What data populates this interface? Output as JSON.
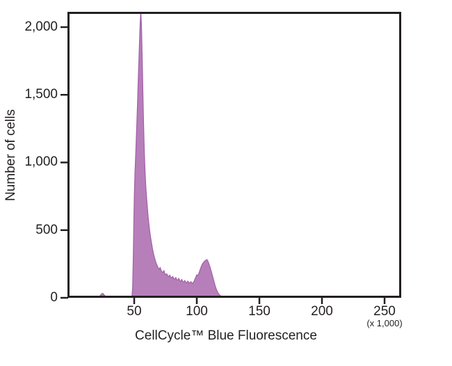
{
  "figure": {
    "background_color": "#ffffff",
    "axis_color": "#231f20",
    "text_color": "#231f20"
  },
  "chart_data": {
    "type": "area",
    "title": "",
    "xlabel": "CellCycle™ Blue Fluorescence",
    "x_multiplier_label": "(x 1,000)",
    "ylabel": "Number of cells",
    "xlim": [
      -3.33,
      263.33
    ],
    "ylim": [
      0,
      2113
    ],
    "x_ticks": [
      50,
      100,
      150,
      200,
      250
    ],
    "x_tick_labels": [
      "50",
      "100",
      "150",
      "200",
      "250"
    ],
    "y_ticks": [
      0,
      500,
      1000,
      1500,
      2000
    ],
    "y_tick_labels": [
      "0",
      "500",
      "1,000",
      "1,500",
      "2,000"
    ],
    "grid": false,
    "legend": null,
    "series": [
      {
        "name": "Number of cells",
        "fill": "#b77fba",
        "stroke": "#a263a8",
        "points": [
          [
            0,
            0
          ],
          [
            19,
            0
          ],
          [
            21,
            3
          ],
          [
            22.5,
            12
          ],
          [
            24,
            30
          ],
          [
            25,
            33
          ],
          [
            26,
            20
          ],
          [
            27.5,
            8
          ],
          [
            29,
            1
          ],
          [
            31,
            0
          ],
          [
            45,
            0
          ],
          [
            47.5,
            0
          ],
          [
            48.3,
            15
          ],
          [
            48.8,
            80
          ],
          [
            49.3,
            300
          ],
          [
            49.7,
            560
          ],
          [
            50.1,
            760
          ],
          [
            50.6,
            920
          ],
          [
            51.2,
            1060
          ],
          [
            51.9,
            1230
          ],
          [
            52.6,
            1420
          ],
          [
            53.3,
            1620
          ],
          [
            54,
            1820
          ],
          [
            54.6,
            1990
          ],
          [
            55,
            2070
          ],
          [
            55.3,
            2110
          ],
          [
            55.7,
            2030
          ],
          [
            56.1,
            1880
          ],
          [
            56.6,
            1660
          ],
          [
            57.1,
            1430
          ],
          [
            57.6,
            1230
          ],
          [
            58.1,
            1060
          ],
          [
            58.7,
            920
          ],
          [
            59.4,
            800
          ],
          [
            60.2,
            700
          ],
          [
            61,
            610
          ],
          [
            61.9,
            530
          ],
          [
            62.8,
            465
          ],
          [
            63.7,
            410
          ],
          [
            64.6,
            362
          ],
          [
            65.5,
            322
          ],
          [
            66.4,
            290
          ],
          [
            67.3,
            262
          ],
          [
            68.2,
            240
          ],
          [
            69.1,
            222
          ],
          [
            70,
            210
          ],
          [
            70.7,
            224
          ],
          [
            71.4,
            205
          ],
          [
            72.2,
            192
          ],
          [
            73,
            186
          ],
          [
            73.7,
            202
          ],
          [
            74.4,
            180
          ],
          [
            75.2,
            170
          ],
          [
            76,
            178
          ],
          [
            76.8,
            162
          ],
          [
            77.6,
            156
          ],
          [
            78.4,
            168
          ],
          [
            79.2,
            152
          ],
          [
            80,
            146
          ],
          [
            80.8,
            158
          ],
          [
            81.6,
            142
          ],
          [
            82.4,
            138
          ],
          [
            83.2,
            150
          ],
          [
            84,
            134
          ],
          [
            84.8,
            130
          ],
          [
            85.6,
            144
          ],
          [
            86.4,
            126
          ],
          [
            87.2,
            122
          ],
          [
            88,
            136
          ],
          [
            88.8,
            120
          ],
          [
            89.6,
            116
          ],
          [
            90.4,
            128
          ],
          [
            91.2,
            114
          ],
          [
            92,
            110
          ],
          [
            92.8,
            124
          ],
          [
            93.6,
            112
          ],
          [
            94.4,
            108
          ],
          [
            95.2,
            120
          ],
          [
            96,
            110
          ],
          [
            96.8,
            106
          ],
          [
            97.6,
            118
          ],
          [
            98.4,
            135
          ],
          [
            99.2,
            152
          ],
          [
            100,
            170
          ],
          [
            100.8,
            162
          ],
          [
            101.6,
            180
          ],
          [
            102.4,
            200
          ],
          [
            103.2,
            222
          ],
          [
            104,
            240
          ],
          [
            104.8,
            254
          ],
          [
            105.6,
            264
          ],
          [
            106.4,
            272
          ],
          [
            107.2,
            278
          ],
          [
            108,
            282
          ],
          [
            108.6,
            276
          ],
          [
            109.2,
            262
          ],
          [
            109.9,
            245
          ],
          [
            110.6,
            226
          ],
          [
            111.3,
            204
          ],
          [
            112,
            180
          ],
          [
            112.7,
            156
          ],
          [
            113.4,
            132
          ],
          [
            114.1,
            108
          ],
          [
            114.8,
            86
          ],
          [
            115.5,
            66
          ],
          [
            116.2,
            50
          ],
          [
            117,
            36
          ],
          [
            117.8,
            25
          ],
          [
            118.6,
            17
          ],
          [
            119.5,
            11
          ],
          [
            120.5,
            7
          ],
          [
            121.5,
            4
          ],
          [
            123,
            1
          ],
          [
            124,
            0
          ]
        ]
      }
    ]
  }
}
